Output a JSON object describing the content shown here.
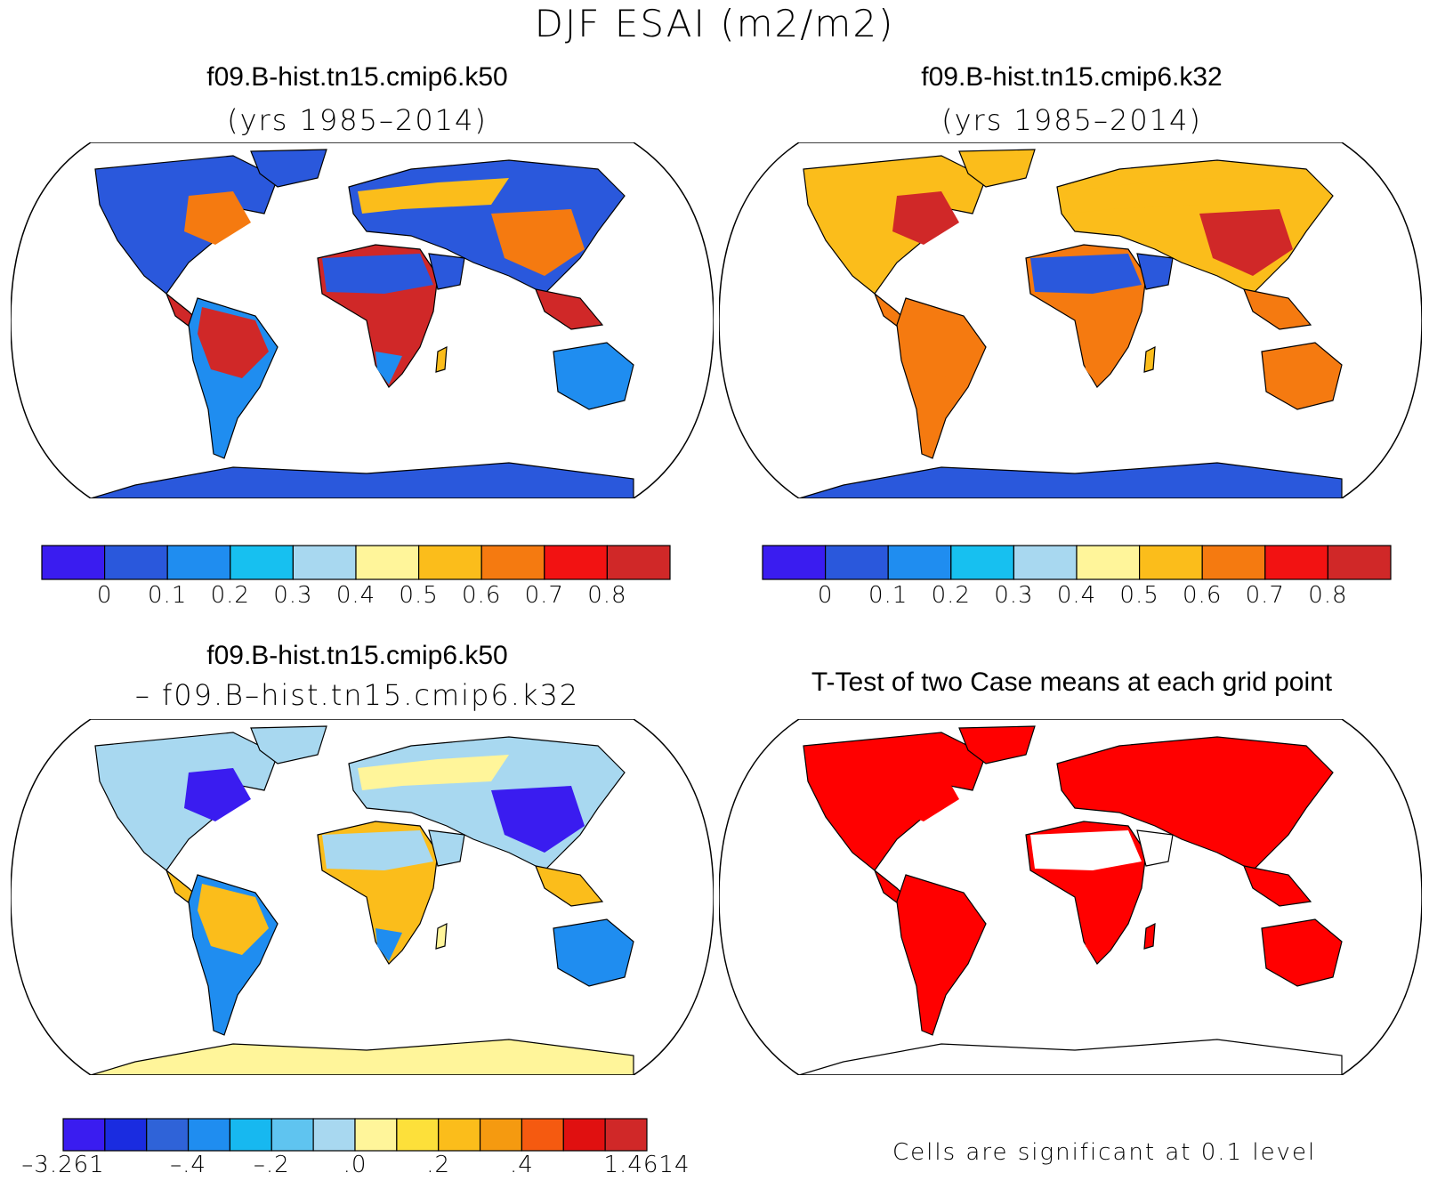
{
  "title": "DJF ESAI (m2/m2)",
  "panels": {
    "top_left": {
      "case": "f09.B-hist.tn15.cmip6.k50",
      "years": "(yrs 1985–2014)"
    },
    "top_right": {
      "case": "f09.B-hist.tn15.cmip6.k32",
      "years": "(yrs 1985–2014)"
    },
    "bottom_left": {
      "case": "f09.B-hist.tn15.cmip6.k50",
      "minus_case": "– f09.B–hist.tn15.cmip6.k32"
    },
    "bottom_right": {
      "title": "T-Test of two Case means at each grid point",
      "note": "Cells are significant at 0.1 level"
    }
  },
  "colorbar_abs": {
    "colors": [
      "#3a1cf0",
      "#2a58dc",
      "#1f8df0",
      "#17c0f0",
      "#a8d8f0",
      "#fff59a",
      "#fbbd1b",
      "#f57a10",
      "#f21212",
      "#d02828"
    ],
    "labels": [
      "0",
      "0.1",
      "0.2",
      "0.3",
      "0.4",
      "0.5",
      "0.6",
      "0.7",
      "0.8"
    ]
  },
  "colorbar_diff": {
    "colors": [
      "#3a1cf0",
      "#1a2ce0",
      "#2f63d8",
      "#1f8df0",
      "#17b8f0",
      "#5fc4f0",
      "#a8d8f0",
      "#fff59a",
      "#fde03a",
      "#fbbd1b",
      "#f59a10",
      "#f55a10",
      "#e01010",
      "#d02828"
    ],
    "labels": [
      "–3.261",
      "–.4",
      "–.2",
      ".0",
      ".2",
      ".4",
      "1.4614"
    ]
  },
  "map_fills": {
    "top_left": {
      "ocean": "#ffffff",
      "north": "#2a58dc",
      "north_warm": "#f57a10",
      "tropics": "#d02828",
      "tropics_edge": "#fbbd1b",
      "south": "#1f8df0",
      "desert": "#2a58dc",
      "antarctica": "#2a58dc"
    },
    "top_right": {
      "ocean": "#ffffff",
      "north": "#fbbd1b",
      "north_warm": "#d02828",
      "tropics": "#f57a10",
      "tropics_edge": "#fbbd1b",
      "south": "#f57a10",
      "desert": "#2a58dc",
      "antarctica": "#2a58dc"
    },
    "bottom_left": {
      "ocean": "#ffffff",
      "north": "#a8d8f0",
      "north_warm": "#3a1cf0",
      "tropics": "#fbbd1b",
      "tropics_edge": "#fff59a",
      "south": "#1f8df0",
      "desert": "#a8d8f0",
      "antarctica": "#fff59a"
    },
    "bottom_right": {
      "ocean": "#ffffff",
      "north": "#ff0000",
      "north_warm": "#ff0000",
      "tropics": "#ff0000",
      "tropics_edge": "#ff0000",
      "south": "#ff0000",
      "desert": "#ffffff",
      "antarctica": "#ffffff"
    }
  }
}
